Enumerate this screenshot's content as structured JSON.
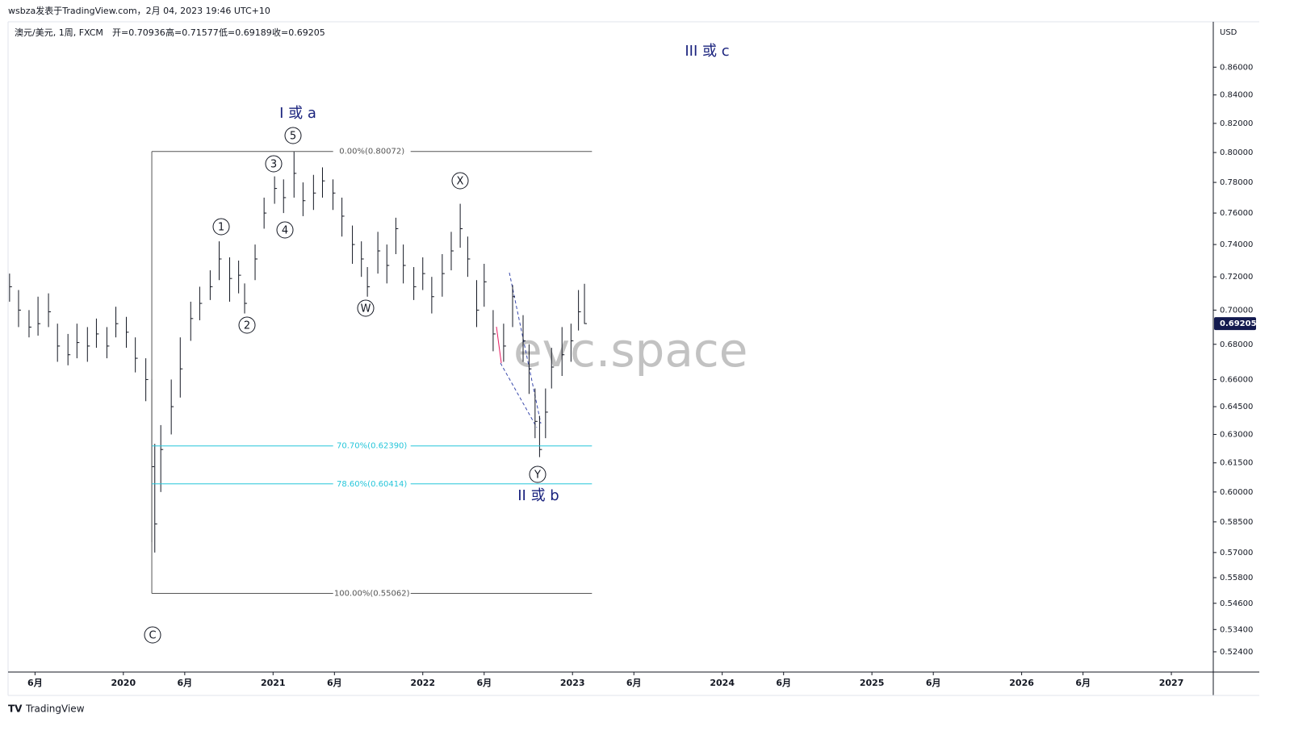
{
  "header": {
    "byline": "wsbza发表于TradingView.com，2月 04, 2023 19:46 UTC+10",
    "symbol": "澳元/美元, 1周, FXCM",
    "open": "开=0.70936",
    "high": "高=0.71577",
    "low": "低=0.69189",
    "close": "收=0.69205"
  },
  "footer": "TradingView",
  "watermark": "evc.space",
  "chart_data": {
    "type": "ohlc",
    "currency": "USD",
    "log_scale": true,
    "color": "#131722",
    "x": [
      2019.24,
      2019.3,
      2019.37,
      2019.43,
      2019.5,
      2019.56,
      2019.63,
      2019.69,
      2019.76,
      2019.82,
      2019.89,
      2019.95,
      2020.02,
      2020.08,
      2020.15,
      2020.19,
      2020.21,
      2020.25,
      2020.32,
      2020.38,
      2020.45,
      2020.51,
      2020.58,
      2020.64,
      2020.71,
      2020.77,
      2020.81,
      2020.88,
      2020.94,
      2021.01,
      2021.07,
      2021.14,
      2021.2,
      2021.27,
      2021.33,
      2021.4,
      2021.46,
      2021.53,
      2021.59,
      2021.63,
      2021.7,
      2021.76,
      2021.82,
      2021.87,
      2021.94,
      2022.0,
      2022.06,
      2022.13,
      2022.19,
      2022.25,
      2022.3,
      2022.36,
      2022.41,
      2022.47,
      2022.54,
      2022.6,
      2022.67,
      2022.71,
      2022.75,
      2022.78,
      2022.82,
      2022.86,
      2022.93,
      2022.99,
      2023.04,
      2023.08
    ],
    "high": [
      0.722,
      0.712,
      0.7,
      0.708,
      0.71,
      0.692,
      0.686,
      0.692,
      0.69,
      0.695,
      0.69,
      0.702,
      0.696,
      0.684,
      0.672,
      0.66,
      0.625,
      0.635,
      0.66,
      0.684,
      0.705,
      0.714,
      0.724,
      0.742,
      0.732,
      0.73,
      0.716,
      0.74,
      0.77,
      0.784,
      0.782,
      0.80072,
      0.78,
      0.785,
      0.79,
      0.782,
      0.77,
      0.752,
      0.742,
      0.726,
      0.748,
      0.74,
      0.757,
      0.74,
      0.726,
      0.732,
      0.72,
      0.734,
      0.748,
      0.766,
      0.745,
      0.718,
      0.728,
      0.7,
      0.692,
      0.715,
      0.697,
      0.68,
      0.655,
      0.64,
      0.655,
      0.678,
      0.69,
      0.692,
      0.712,
      0.71577
    ],
    "low": [
      0.705,
      0.69,
      0.684,
      0.685,
      0.69,
      0.67,
      0.668,
      0.672,
      0.67,
      0.678,
      0.672,
      0.684,
      0.678,
      0.664,
      0.648,
      0.575,
      0.57,
      0.6,
      0.63,
      0.65,
      0.682,
      0.694,
      0.706,
      0.718,
      0.705,
      0.71,
      0.698,
      0.718,
      0.75,
      0.766,
      0.76,
      0.77,
      0.758,
      0.762,
      0.77,
      0.762,
      0.745,
      0.728,
      0.72,
      0.708,
      0.722,
      0.716,
      0.734,
      0.716,
      0.706,
      0.712,
      0.698,
      0.708,
      0.724,
      0.738,
      0.72,
      0.69,
      0.702,
      0.676,
      0.67,
      0.69,
      0.67,
      0.652,
      0.628,
      0.618,
      0.628,
      0.655,
      0.662,
      0.67,
      0.688,
      0.69189
    ],
    "close": [
      0.714,
      0.7,
      0.69,
      0.692,
      0.699,
      0.679,
      0.674,
      0.681,
      0.679,
      0.686,
      0.679,
      0.692,
      0.687,
      0.672,
      0.66,
      0.613,
      0.584,
      0.622,
      0.645,
      0.666,
      0.695,
      0.704,
      0.714,
      0.731,
      0.719,
      0.721,
      0.704,
      0.731,
      0.76,
      0.776,
      0.77,
      0.786,
      0.768,
      0.773,
      0.781,
      0.773,
      0.758,
      0.74,
      0.731,
      0.714,
      0.736,
      0.727,
      0.75,
      0.727,
      0.714,
      0.722,
      0.708,
      0.722,
      0.736,
      0.75,
      0.731,
      0.7,
      0.717,
      0.686,
      0.679,
      0.708,
      0.682,
      0.666,
      0.637,
      0.622,
      0.642,
      0.667,
      0.674,
      0.682,
      0.699,
      0.69205
    ],
    "xlim": [
      2019.23,
      2027.28
    ],
    "xticks": [
      {
        "value": 2019.41,
        "label": "6月"
      },
      2020,
      {
        "value": 2020.41,
        "label": "6月"
      },
      2021,
      {
        "value": 2021.41,
        "label": "6月"
      },
      2022,
      {
        "value": 2022.41,
        "label": "6月"
      },
      2023,
      {
        "value": 2023.41,
        "label": "6月"
      },
      2024,
      {
        "value": 2024.41,
        "label": "6月"
      },
      2025,
      {
        "value": 2025.41,
        "label": "6月"
      },
      2026,
      {
        "value": 2026.41,
        "label": "6月"
      },
      2027
    ],
    "ylim": [
      0.5151,
      0.8919
    ],
    "yticks": [
      {
        "value": 0.86,
        "label": "0.86000"
      },
      {
        "value": 0.84,
        "label": "0.84000"
      },
      {
        "value": 0.82,
        "label": "0.82000"
      },
      {
        "value": 0.8,
        "label": "0.80000"
      },
      {
        "value": 0.78,
        "label": "0.78000"
      },
      {
        "value": 0.76,
        "label": "0.76000"
      },
      {
        "value": 0.74,
        "label": "0.74000"
      },
      {
        "value": 0.72,
        "label": "0.72000"
      },
      {
        "value": 0.7,
        "label": "0.70000"
      },
      {
        "value": 0.68,
        "label": "0.68000"
      },
      {
        "value": 0.66,
        "label": "0.66000"
      },
      {
        "value": 0.645,
        "label": "0.64500"
      },
      {
        "value": 0.63,
        "label": "0.63000"
      },
      {
        "value": 0.615,
        "label": "0.61500"
      },
      {
        "value": 0.6,
        "label": "0.60000"
      },
      {
        "value": 0.585,
        "label": "0.58500"
      },
      {
        "value": 0.57,
        "label": "0.57000"
      },
      {
        "value": 0.558,
        "label": "0.55800"
      },
      {
        "value": 0.546,
        "label": "0.54600"
      },
      {
        "value": 0.534,
        "label": "0.53400"
      },
      {
        "value": 0.524,
        "label": "0.52400"
      }
    ],
    "fib_range": [
      2020.19,
      2023.13
    ],
    "fib_levels": [
      {
        "label": "0.00%(0.80072)",
        "value": 0.80072,
        "color": "#555555"
      },
      {
        "label": "70.70%(0.62390)",
        "value": 0.6239,
        "color": "#26c6da"
      },
      {
        "label": "78.60%(0.60414)",
        "value": 0.60414,
        "color": "#26c6da"
      },
      {
        "label": "100.00%(0.55062)",
        "value": 0.55062,
        "color": "#555555"
      }
    ],
    "waves": [
      "1",
      "2",
      "3",
      "4",
      "5",
      "W",
      "X",
      "Y",
      "C"
    ],
    "annotations": [
      "I 或 a",
      "II 或 b",
      "III 或 c"
    ]
  }
}
